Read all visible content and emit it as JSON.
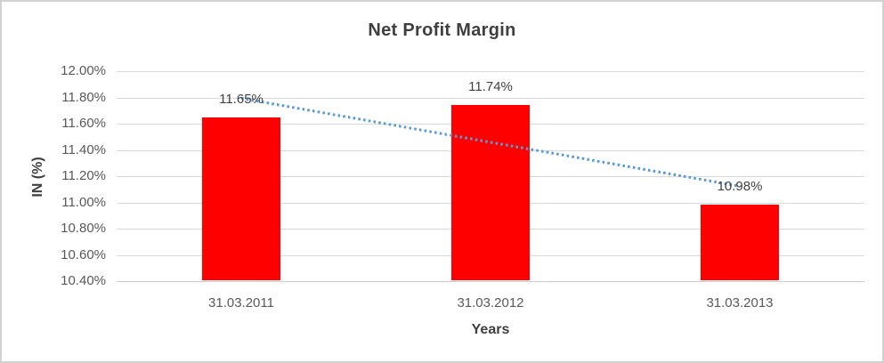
{
  "frame": {
    "background": "#ffffff",
    "border_color": "#d2d2d2"
  },
  "chart_data": {
    "type": "bar",
    "title": "Net Profit Margin",
    "categories": [
      "31.03.2011",
      "31.03.2012",
      "31.03.2013"
    ],
    "values": [
      11.65,
      11.74,
      10.98
    ],
    "data_labels": [
      "11.65%",
      "11.74%",
      "10.98%"
    ],
    "xlabel": "Years",
    "ylabel": "IN (%)",
    "ylim": [
      10.4,
      12.0
    ],
    "ytick_step": 0.2,
    "ytick_labels": [
      "12.00%",
      "11.80%",
      "11.60%",
      "11.40%",
      "11.20%",
      "11.00%",
      "10.80%",
      "10.60%",
      "10.40%"
    ],
    "grid": true,
    "legend_position": "none",
    "bar_color": "#ff0000",
    "gridline_color": "#d9d9d9",
    "tick_label_color": "#595959",
    "title_color": "#3f3f3f",
    "data_label_color": "#404040",
    "trendline": {
      "type": "linear",
      "style": "dotted",
      "color": "#5b9bd5",
      "start_value": 11.79,
      "end_value": 11.12
    }
  }
}
